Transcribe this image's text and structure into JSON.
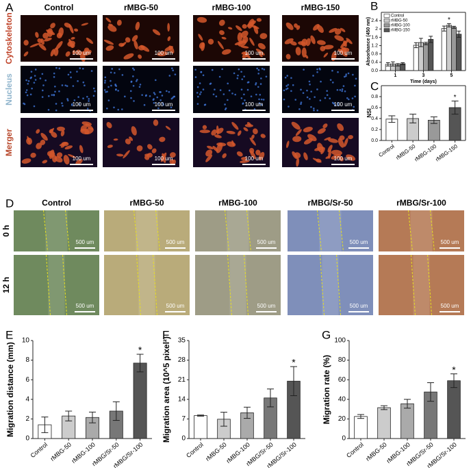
{
  "panel_labels": [
    "A",
    "B",
    "C",
    "D",
    "E",
    "F",
    "G"
  ],
  "panel_a": {
    "columns": [
      "Control",
      "rMBG-50",
      "rMBG-100",
      "rMBG-150"
    ],
    "rows": [
      "Cytoskeleton",
      "Nucleus",
      "Merger"
    ],
    "scale_bar": "100 um"
  },
  "panel_d": {
    "columns": [
      "Control",
      "rMBG-50",
      "rMBG-100",
      "rMBG/Sr-50",
      "rMBG/Sr-100"
    ],
    "rows": [
      "0 h",
      "12 h"
    ],
    "scale_bar": "500 um"
  },
  "chart_data": [
    {
      "type": "bar",
      "xlabel": "Time (days)",
      "ylabel": "Absorbance (450 nm)",
      "categories": [
        "1",
        "3",
        "5"
      ],
      "series": [
        {
          "name": "Control",
          "color": "#ffffff",
          "values": [
            0.3,
            1.22,
            2.02
          ],
          "errors": [
            0.08,
            0.12,
            0.12
          ]
        },
        {
          "name": "rMBG-50",
          "color": "#cccccc",
          "values": [
            0.32,
            1.35,
            2.18
          ],
          "errors": [
            0.1,
            0.2,
            0.08
          ]
        },
        {
          "name": "rMBG-100",
          "color": "#999999",
          "values": [
            0.28,
            1.3,
            2.08
          ],
          "errors": [
            0.06,
            0.06,
            0.05
          ]
        },
        {
          "name": "rMBG-150",
          "color": "#555555",
          "values": [
            0.33,
            1.5,
            1.75
          ],
          "errors": [
            0.05,
            0.15,
            0.15
          ]
        }
      ],
      "ylim": [
        0,
        2.8
      ],
      "yticks": [
        {
          "value": 0,
          "label": "0.0"
        },
        0.4,
        0.8,
        1.2,
        1.6,
        2,
        {
          "value": 2.4,
          "label": "2.4"
        }
      ],
      "legend": "upper left",
      "annotations": [
        {
          "text": "*",
          "category": "5",
          "series": "rMBG-50"
        }
      ]
    },
    {
      "type": "bar",
      "ylabel": "NSI",
      "categories": [
        "Control",
        "rMBG-50",
        "rMBG-100",
        "rMBG-150"
      ],
      "values": [
        0.39,
        0.4,
        0.37,
        0.6
      ],
      "errors": [
        0.06,
        0.08,
        0.06,
        0.12
      ],
      "colors": [
        "#ffffff",
        "#cccccc",
        "#999999",
        "#555555"
      ],
      "ylim": [
        0,
        1
      ],
      "yticks": [
        {
          "value": 0,
          "label": "0.0"
        },
        0.2,
        0.4,
        0.6,
        0.8
      ],
      "annotations": [
        {
          "text": "*",
          "category": "rMBG-150"
        }
      ]
    },
    {
      "type": "bar",
      "ylabel": "Migration distance (mm)",
      "categories": [
        "Control",
        "rMBG-50",
        "rMBG-100",
        "rMBG/Sr-50",
        "rMBG/Sr-100"
      ],
      "values": [
        1.4,
        2.3,
        2.15,
        2.8,
        7.7
      ],
      "errors": [
        0.8,
        0.5,
        0.55,
        0.95,
        0.9
      ],
      "colors": [
        "#ffffff",
        "#cccccc",
        "#aaaaaa",
        "#777777",
        "#555555"
      ],
      "ylim": [
        0,
        10
      ],
      "yticks": [
        0,
        2,
        4,
        6,
        8,
        10
      ],
      "annotations": [
        {
          "text": "*",
          "category": "rMBG/Sr-100"
        }
      ]
    },
    {
      "type": "bar",
      "ylabel": "Migration area (10^5 pixel²)",
      "categories": [
        "Control",
        "rMBG-50",
        "rMBG-100",
        "rMBG/Sr-50",
        "rMBG/Sr-100"
      ],
      "values": [
        8.2,
        6.9,
        9.2,
        14.5,
        20.5
      ],
      "errors": [
        0.2,
        2.5,
        2,
        3.2,
        5.2
      ],
      "colors": [
        "#ffffff",
        "#cccccc",
        "#aaaaaa",
        "#777777",
        "#555555"
      ],
      "ylim": [
        0,
        35
      ],
      "yticks": [
        0,
        7,
        14,
        21,
        28,
        35
      ],
      "annotations": [
        {
          "text": "*",
          "category": "rMBG/Sr-100"
        }
      ]
    },
    {
      "type": "bar",
      "ylabel": "Migration rate (%)",
      "categories": [
        "Control",
        "rMBG-50",
        "rMBG-100",
        "rMBG/Sr-50",
        "rMBG/Sr-100"
      ],
      "values": [
        22.5,
        31.5,
        35.5,
        47.5,
        59
      ],
      "errors": [
        2,
        2,
        4.5,
        9.5,
        7
      ],
      "colors": [
        "#ffffff",
        "#cccccc",
        "#aaaaaa",
        "#777777",
        "#555555"
      ],
      "ylim": [
        0,
        100
      ],
      "yticks": [
        0,
        20,
        40,
        60,
        80,
        100
      ],
      "annotations": [
        {
          "text": "*",
          "category": "rMBG/Sr-100"
        }
      ]
    }
  ]
}
